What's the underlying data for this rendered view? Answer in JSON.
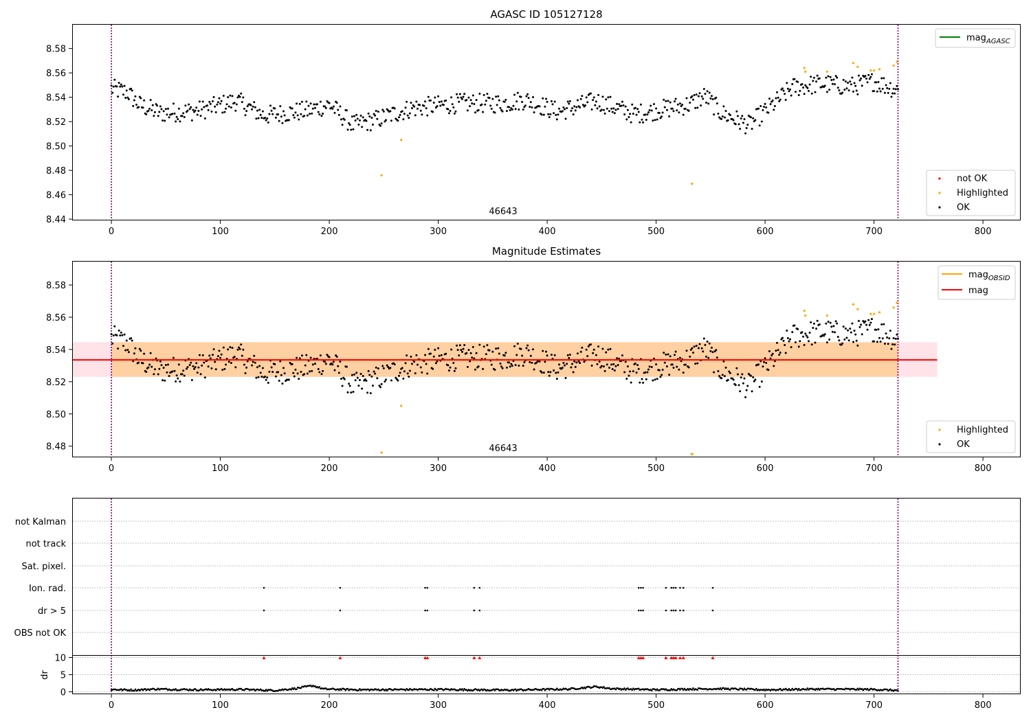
{
  "chart_data": [
    {
      "type": "scatter",
      "title": "AGASC ID 105127128",
      "xlim": [
        -36,
        834
      ],
      "ylim": [
        8.4395,
        8.5995
      ],
      "xticks": [
        0,
        100,
        200,
        300,
        400,
        500,
        600,
        700,
        800
      ],
      "yticks": [
        8.44,
        8.46,
        8.48,
        8.5,
        8.52,
        8.54,
        8.56,
        8.58
      ],
      "annotation": "46643",
      "vlines": [
        0,
        722
      ],
      "legend_lines": [
        {
          "label": "mag",
          "subscript": "AGASC",
          "color": "#008000"
        }
      ],
      "legend_points": [
        {
          "label": "not OK",
          "color": "#ff0000"
        },
        {
          "label": "Highlighted",
          "color": "#ffa500"
        },
        {
          "label": "OK",
          "color": "#000000"
        }
      ],
      "highlighted": [
        [
          248,
          8.476
        ],
        [
          266,
          8.505
        ],
        [
          533,
          8.469
        ],
        [
          636,
          8.564
        ],
        [
          637,
          8.561
        ],
        [
          657,
          8.561
        ],
        [
          681,
          8.568
        ],
        [
          685,
          8.565
        ],
        [
          697,
          8.562
        ],
        [
          700,
          8.562
        ],
        [
          705,
          8.563
        ],
        [
          718,
          8.566
        ],
        [
          721,
          8.569
        ]
      ],
      "ok_profile": [
        [
          0,
          8.547
        ],
        [
          15,
          8.544
        ],
        [
          25,
          8.534
        ],
        [
          45,
          8.527
        ],
        [
          80,
          8.529
        ],
        [
          115,
          8.537
        ],
        [
          140,
          8.525
        ],
        [
          180,
          8.529
        ],
        [
          200,
          8.534
        ],
        [
          222,
          8.517
        ],
        [
          245,
          8.522
        ],
        [
          275,
          8.531
        ],
        [
          320,
          8.535
        ],
        [
          360,
          8.535
        ],
        [
          380,
          8.538
        ],
        [
          410,
          8.528
        ],
        [
          445,
          8.537
        ],
        [
          480,
          8.526
        ],
        [
          505,
          8.53
        ],
        [
          530,
          8.534
        ],
        [
          545,
          8.541
        ],
        [
          560,
          8.527
        ],
        [
          585,
          8.517
        ],
        [
          610,
          8.536
        ],
        [
          625,
          8.548
        ],
        [
          650,
          8.551
        ],
        [
          680,
          8.549
        ],
        [
          700,
          8.553
        ],
        [
          722,
          8.546
        ]
      ]
    },
    {
      "type": "scatter",
      "title": "Magnitude Estimates",
      "xlim": [
        -36,
        834
      ],
      "ylim": [
        8.4735,
        8.5945
      ],
      "xticks": [
        0,
        100,
        200,
        300,
        400,
        500,
        600,
        700,
        800
      ],
      "yticks": [
        8.48,
        8.5,
        8.52,
        8.54,
        8.56,
        8.58
      ],
      "annotation": "46643",
      "vlines": [
        0,
        722
      ],
      "mag_line": 8.5335,
      "band_obs": [
        8.523,
        8.5445
      ],
      "band_x": [
        -36,
        758
      ],
      "band_obs_x": [
        0,
        722
      ],
      "legend_lines": [
        {
          "label": "mag",
          "subscript": "OBSID",
          "color": "#ffa500"
        },
        {
          "label": "mag",
          "subscript": "",
          "color": "#ff0000"
        }
      ],
      "legend_points": [
        {
          "label": "Highlighted",
          "color": "#ffa500"
        },
        {
          "label": "OK",
          "color": "#000000"
        }
      ]
    },
    {
      "type": "scatter",
      "xlim": [
        -36,
        834
      ],
      "flag_rows": [
        "not Kalman",
        "not track",
        "Sat. pixel.",
        "Ion. rad.",
        "dr > 5",
        "OBS not OK"
      ],
      "flagged_x": [
        140,
        210,
        288,
        290,
        333,
        338,
        484,
        486,
        488,
        509,
        514,
        516,
        518,
        522,
        525,
        552
      ],
      "flags_on": [
        "Ion. rad.",
        "dr > 5"
      ],
      "dr_ylabel": "dr",
      "dr_yticks": [
        0,
        5,
        10
      ],
      "dr_ylim": [
        -0.5,
        10.5
      ],
      "dr_clip": 10,
      "xticks": [
        0,
        100,
        200,
        300,
        400,
        500,
        600,
        700,
        800
      ],
      "vlines": [
        0,
        722
      ],
      "dr_profile": [
        [
          0,
          0.7
        ],
        [
          20,
          0.5
        ],
        [
          40,
          0.8
        ],
        [
          80,
          0.6
        ],
        [
          120,
          0.7
        ],
        [
          150,
          0.4
        ],
        [
          170,
          1.0
        ],
        [
          185,
          1.8
        ],
        [
          195,
          0.8
        ],
        [
          230,
          0.6
        ],
        [
          300,
          0.7
        ],
        [
          360,
          0.5
        ],
        [
          420,
          0.8
        ],
        [
          445,
          1.5
        ],
        [
          460,
          0.9
        ],
        [
          500,
          0.6
        ],
        [
          530,
          0.8
        ],
        [
          560,
          0.9
        ],
        [
          600,
          0.6
        ],
        [
          650,
          0.8
        ],
        [
          700,
          0.7
        ],
        [
          722,
          0.4
        ]
      ]
    }
  ]
}
